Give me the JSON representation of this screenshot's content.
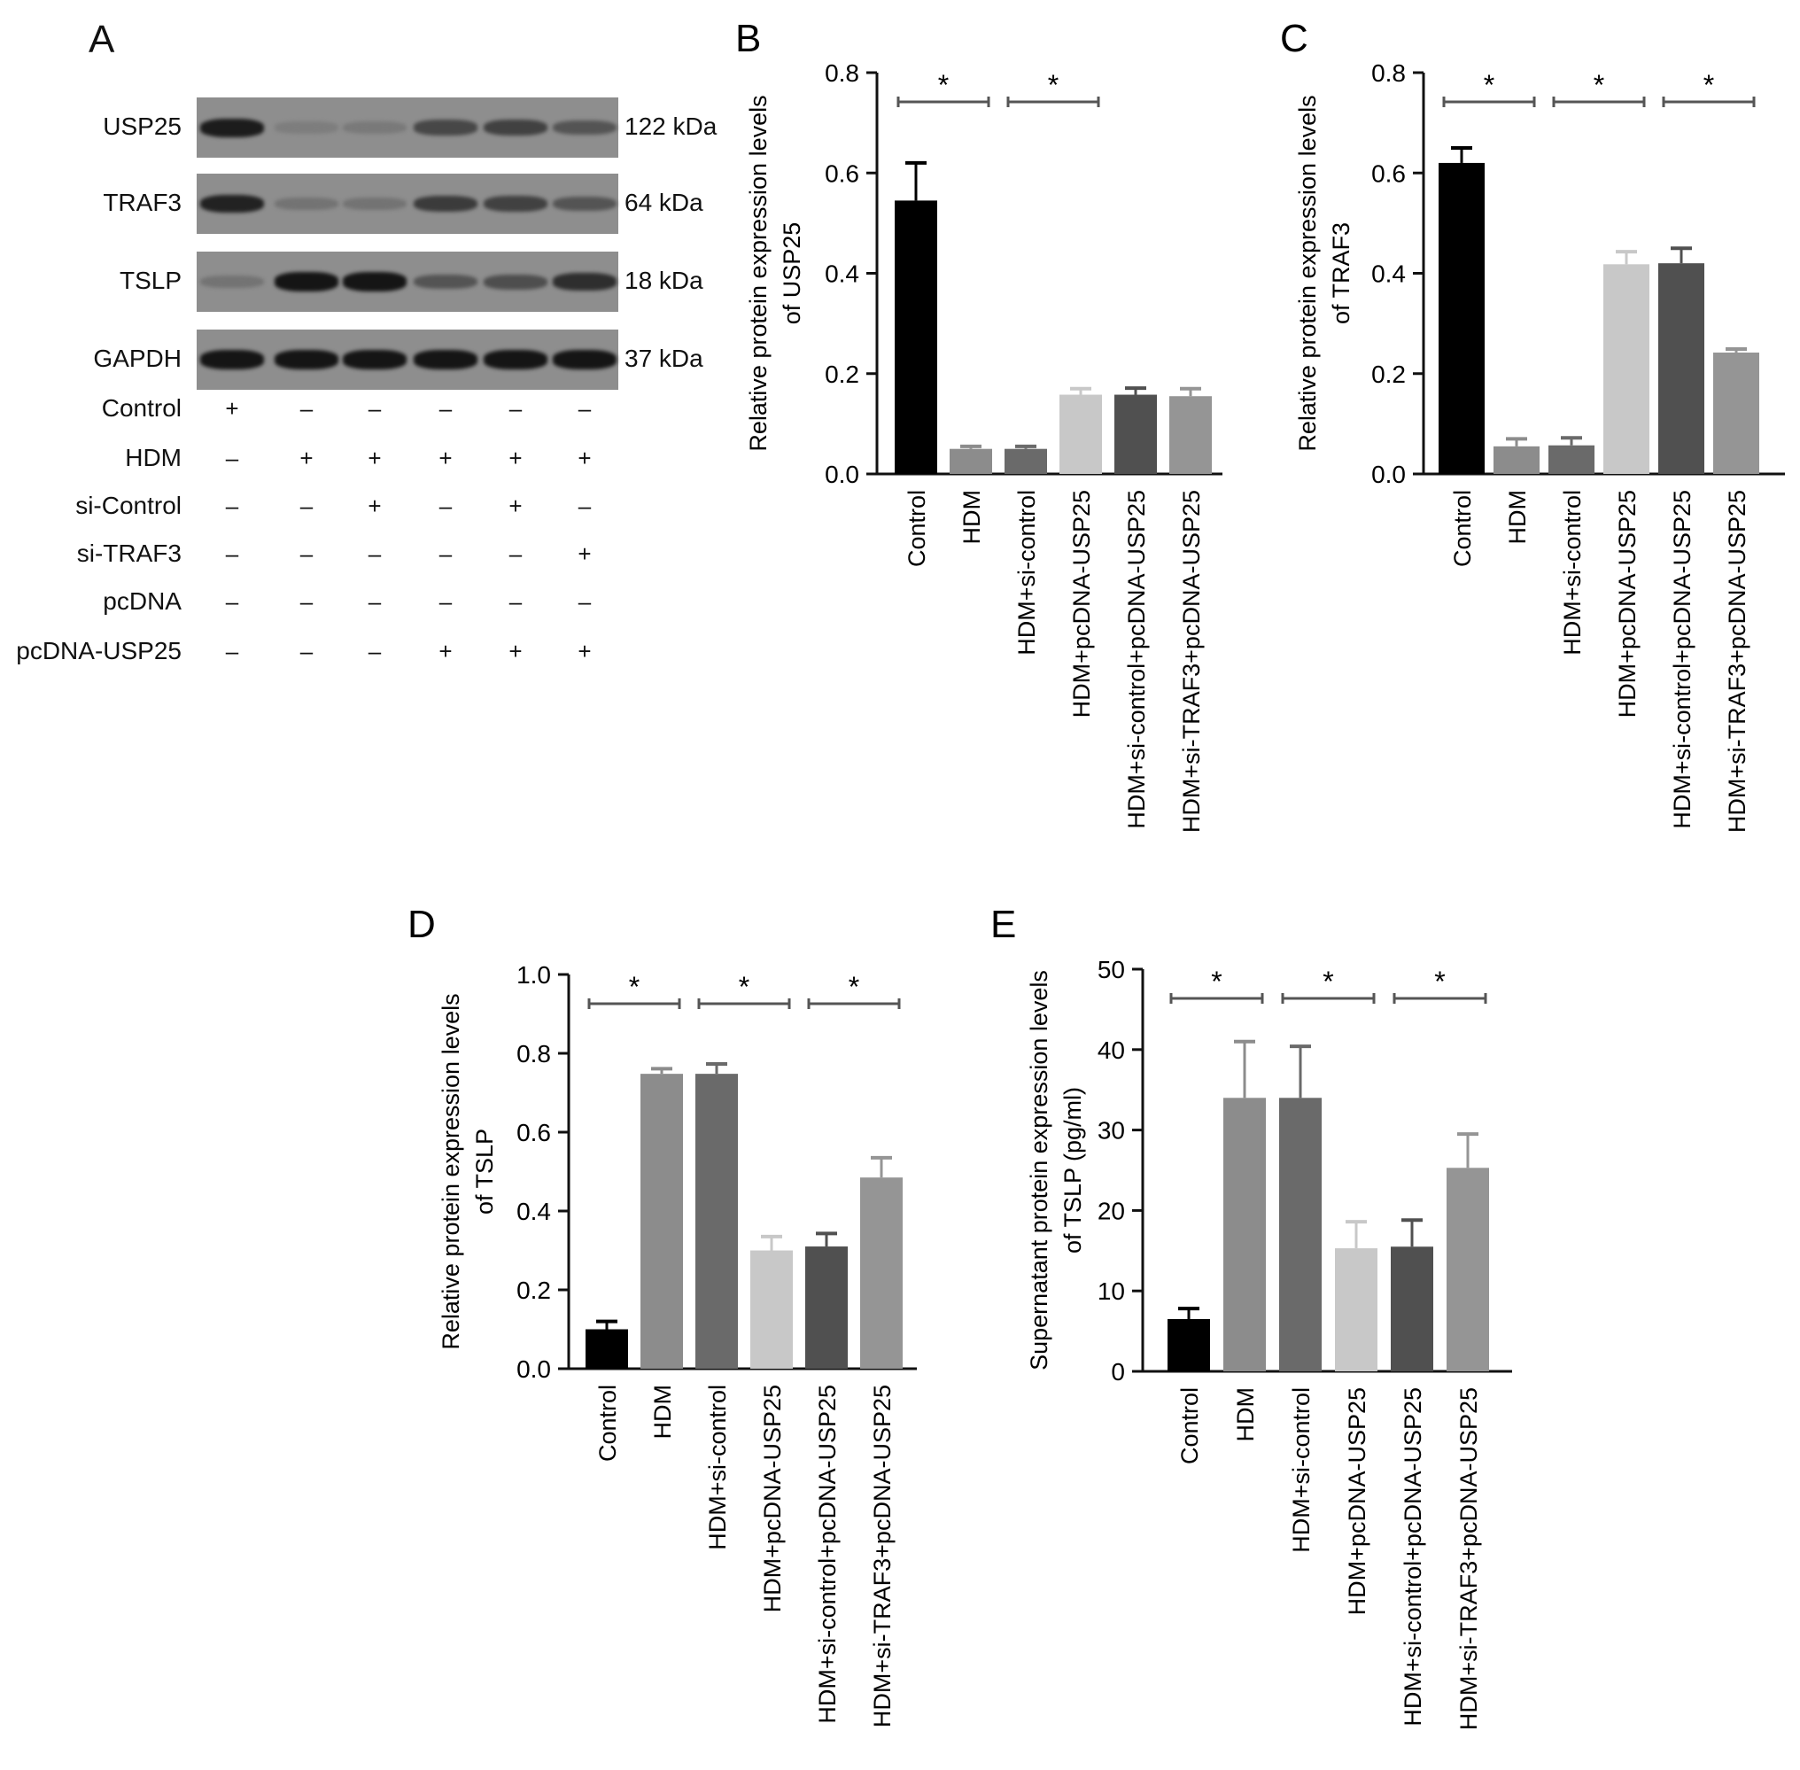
{
  "panel_a": {
    "letter": "A",
    "blots": [
      {
        "protein": "USP25",
        "kda": "122 kDa",
        "intensities": [
          0.9,
          0.12,
          0.15,
          0.55,
          0.6,
          0.45
        ]
      },
      {
        "protein": "TRAF3",
        "kda": "64 kDa",
        "intensities": [
          0.85,
          0.2,
          0.2,
          0.65,
          0.6,
          0.45
        ]
      },
      {
        "protein": "TSLP",
        "kda": "18 kDa",
        "intensities": [
          0.2,
          0.95,
          0.95,
          0.45,
          0.5,
          0.75
        ]
      },
      {
        "protein": "GAPDH",
        "kda": "37 kDa",
        "intensities": [
          0.95,
          0.95,
          0.95,
          0.95,
          0.95,
          0.95
        ]
      }
    ],
    "conditions": [
      {
        "label": "Control",
        "signs": [
          "+",
          "–",
          "–",
          "–",
          "–",
          "–"
        ]
      },
      {
        "label": "HDM",
        "signs": [
          "–",
          "+",
          "+",
          "+",
          "+",
          "+"
        ]
      },
      {
        "label": "si-Control",
        "signs": [
          "–",
          "–",
          "+",
          "–",
          "+",
          "–"
        ]
      },
      {
        "label": "si-TRAF3",
        "signs": [
          "–",
          "–",
          "–",
          "–",
          "–",
          "+"
        ]
      },
      {
        "label": "pcDNA",
        "signs": [
          "–",
          "–",
          "–",
          "–",
          "–",
          "–"
        ]
      },
      {
        "label": "pcDNA-USP25",
        "signs": [
          "–",
          "–",
          "–",
          "+",
          "+",
          "+"
        ]
      }
    ]
  },
  "colors": [
    "#000000",
    "#8c8c8c",
    "#6a6a6a",
    "#c8c8c8",
    "#505050",
    "#959595"
  ],
  "chart_data": [
    {
      "panel": "B",
      "type": "bar",
      "ylabel": [
        "Relative protein expression levels",
        "of USP25"
      ],
      "ylim": [
        0,
        0.8
      ],
      "yticks": [
        0.0,
        0.2,
        0.4,
        0.6,
        0.8
      ],
      "tick_labels": [
        "0.0",
        "0.2",
        "0.4",
        "0.6",
        "0.8"
      ],
      "categories": [
        "Control",
        "HDM",
        "HDM+si-control",
        "HDM+pcDNA-USP25",
        "HDM+si-control+pcDNA-USP25",
        "HDM+si-TRAF3+pcDNA-USP25"
      ],
      "values": [
        0.545,
        0.05,
        0.05,
        0.158,
        0.158,
        0.155
      ],
      "errors": [
        0.075,
        0.005,
        0.005,
        0.012,
        0.013,
        0.015
      ],
      "significance": [
        {
          "from": 0,
          "to": 1,
          "label": "*"
        },
        {
          "from": 2,
          "to": 3,
          "label": "*"
        }
      ]
    },
    {
      "panel": "C",
      "type": "bar",
      "ylabel": [
        "Relative protein expression levels",
        "of TRAF3"
      ],
      "ylim": [
        0,
        0.8
      ],
      "yticks": [
        0.0,
        0.2,
        0.4,
        0.6,
        0.8
      ],
      "tick_labels": [
        "0.0",
        "0.2",
        "0.4",
        "0.6",
        "0.8"
      ],
      "categories": [
        "Control",
        "HDM",
        "HDM+si-control",
        "HDM+pcDNA-USP25",
        "HDM+si-control+pcDNA-USP25",
        "HDM+si-TRAF3+pcDNA-USP25"
      ],
      "values": [
        0.62,
        0.055,
        0.057,
        0.418,
        0.42,
        0.242
      ],
      "errors": [
        0.03,
        0.015,
        0.015,
        0.025,
        0.03,
        0.007
      ],
      "significance": [
        {
          "from": 0,
          "to": 1,
          "label": "*"
        },
        {
          "from": 2,
          "to": 3,
          "label": "*"
        },
        {
          "from": 4,
          "to": 5,
          "label": "*"
        }
      ]
    },
    {
      "panel": "D",
      "type": "bar",
      "ylabel": [
        "Relative protein expression levels",
        "of TSLP"
      ],
      "ylim": [
        0,
        1.0
      ],
      "yticks": [
        0.0,
        0.2,
        0.4,
        0.6,
        0.8,
        1.0
      ],
      "tick_labels": [
        "0.0",
        "0.2",
        "0.4",
        "0.6",
        "0.8",
        "1.0"
      ],
      "categories": [
        "Control",
        "HDM",
        "HDM+si-control",
        "HDM+pcDNA-USP25",
        "HDM+si-control+pcDNA-USP25",
        "HDM+si-TRAF3+pcDNA-USP25"
      ],
      "values": [
        0.1,
        0.748,
        0.748,
        0.3,
        0.31,
        0.485
      ],
      "errors": [
        0.02,
        0.013,
        0.025,
        0.035,
        0.033,
        0.05
      ],
      "significance": [
        {
          "from": 0,
          "to": 1,
          "label": "*"
        },
        {
          "from": 2,
          "to": 3,
          "label": "*"
        },
        {
          "from": 4,
          "to": 5,
          "label": "*"
        }
      ]
    },
    {
      "panel": "E",
      "type": "bar",
      "ylabel": [
        "Supernatant protein expression levels",
        "of TSLP (pg/ml)"
      ],
      "ylim": [
        0,
        50
      ],
      "yticks": [
        0,
        10,
        20,
        30,
        40,
        50
      ],
      "tick_labels": [
        "0",
        "10",
        "20",
        "30",
        "40",
        "50"
      ],
      "categories": [
        "Control",
        "HDM",
        "HDM+si-control",
        "HDM+pcDNA-USP25",
        "HDM+si-control+pcDNA-USP25",
        "HDM+si-TRAF3+pcDNA-USP25"
      ],
      "values": [
        6.5,
        34,
        34,
        15.3,
        15.5,
        25.3
      ],
      "errors": [
        1.3,
        7,
        6.4,
        3.3,
        3.3,
        4.2
      ],
      "significance": [
        {
          "from": 0,
          "to": 1,
          "label": "*"
        },
        {
          "from": 2,
          "to": 3,
          "label": "*"
        },
        {
          "from": 4,
          "to": 5,
          "label": "*"
        }
      ]
    }
  ]
}
